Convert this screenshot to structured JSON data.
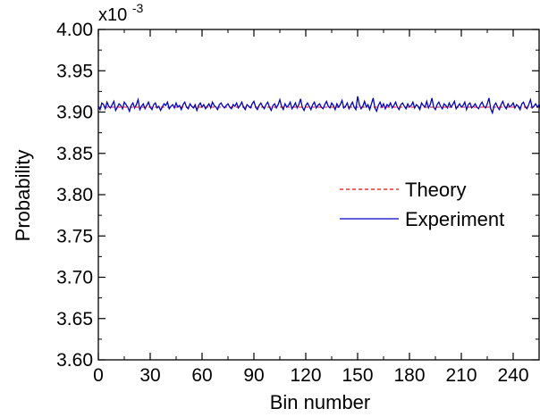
{
  "chart_data": {
    "type": "line",
    "xlabel": "Bin number",
    "ylabel": "Probability",
    "y_multiplier_label": "x10",
    "y_multiplier_exponent": "-3",
    "xlim": [
      0,
      255
    ],
    "ylim": [
      3.6,
      4.0
    ],
    "x_ticks": [
      0,
      30,
      60,
      90,
      120,
      150,
      180,
      210,
      240
    ],
    "x_tick_labels": [
      "0",
      "30",
      "60",
      "90",
      "120",
      "150",
      "180",
      "210",
      "240"
    ],
    "y_ticks": [
      3.6,
      3.65,
      3.7,
      3.75,
      3.8,
      3.85,
      3.9,
      3.95,
      4.0
    ],
    "y_tick_labels": [
      "3.60",
      "3.65",
      "3.70",
      "3.75",
      "3.80",
      "3.85",
      "3.90",
      "3.95",
      "4.00"
    ],
    "grid": false,
    "legend_position": "right",
    "series": [
      {
        "name": "Theory",
        "color": "#ff0000",
        "style": "dashed",
        "x": [
          0,
          255
        ],
        "values": [
          3.906,
          3.906
        ]
      },
      {
        "name": "Experiment",
        "color": "#0000cc",
        "style": "solid",
        "x_start": 0,
        "x_step": 1,
        "values": [
          3.907,
          3.903,
          3.911,
          3.909,
          3.904,
          3.912,
          3.907,
          3.905,
          3.909,
          3.913,
          3.902,
          3.906,
          3.91,
          3.908,
          3.904,
          3.912,
          3.909,
          3.906,
          3.901,
          3.908,
          3.911,
          3.905,
          3.909,
          3.915,
          3.903,
          3.907,
          3.91,
          3.904,
          3.908,
          3.912,
          3.906,
          3.903,
          3.909,
          3.911,
          3.905,
          3.907,
          3.902,
          3.906,
          3.91,
          3.908,
          3.912,
          3.904,
          3.907,
          3.909,
          3.905,
          3.911,
          3.906,
          3.908,
          3.903,
          3.909,
          3.912,
          3.906,
          3.904,
          3.91,
          3.907,
          3.905,
          3.909,
          3.902,
          3.908,
          3.911,
          3.906,
          3.909,
          3.904,
          3.907,
          3.91,
          3.905,
          3.912,
          3.908,
          3.906,
          3.903,
          3.909,
          3.911,
          3.907,
          3.905,
          3.908,
          3.91,
          3.906,
          3.904,
          3.909,
          3.907,
          3.911,
          3.905,
          3.908,
          3.912,
          3.906,
          3.903,
          3.909,
          3.907,
          3.905,
          3.91,
          3.913,
          3.906,
          3.903,
          3.908,
          3.911,
          3.907,
          3.904,
          3.909,
          3.912,
          3.906,
          3.902,
          3.908,
          3.91,
          3.905,
          3.909,
          3.915,
          3.907,
          3.903,
          3.91,
          3.906,
          3.908,
          3.912,
          3.904,
          3.907,
          3.911,
          3.905,
          3.909,
          3.916,
          3.906,
          3.902,
          3.908,
          3.911,
          3.907,
          3.903,
          3.909,
          3.912,
          3.905,
          3.908,
          3.91,
          3.906,
          3.904,
          3.909,
          3.913,
          3.907,
          3.905,
          3.911,
          3.908,
          3.903,
          3.91,
          3.906,
          3.909,
          3.914,
          3.905,
          3.907,
          3.911,
          3.904,
          3.908,
          3.912,
          3.906,
          3.903,
          3.919,
          3.909,
          3.904,
          3.907,
          3.913,
          3.906,
          3.909,
          3.903,
          3.91,
          3.917,
          3.905,
          3.901,
          3.908,
          3.912,
          3.906,
          3.91,
          3.904,
          3.909,
          3.907,
          3.911,
          3.905,
          3.908,
          3.912,
          3.906,
          3.903,
          3.909,
          3.911,
          3.907,
          3.904,
          3.91,
          3.906,
          3.908,
          3.912,
          3.905,
          3.909,
          3.907,
          3.903,
          3.911,
          3.908,
          3.906,
          3.913,
          3.905,
          3.909,
          3.917,
          3.906,
          3.903,
          3.909,
          3.912,
          3.907,
          3.904,
          3.91,
          3.908,
          3.905,
          3.911,
          3.906,
          3.909,
          3.913,
          3.904,
          3.907,
          3.91,
          3.906,
          3.908,
          3.912,
          3.903,
          3.909,
          3.911,
          3.905,
          3.907,
          3.91,
          3.906,
          3.904,
          3.909,
          3.912,
          3.907,
          3.905,
          3.91,
          3.917,
          3.904,
          3.899,
          3.908,
          3.911,
          3.906,
          3.903,
          3.909,
          3.913,
          3.907,
          3.904,
          3.91,
          3.906,
          3.908,
          3.911,
          3.905,
          3.909,
          3.907,
          3.903,
          3.91,
          3.912,
          3.906,
          3.904,
          3.909,
          3.915,
          3.905,
          3.907,
          3.91,
          3.906,
          3.909,
          3.904
        ]
      }
    ]
  }
}
